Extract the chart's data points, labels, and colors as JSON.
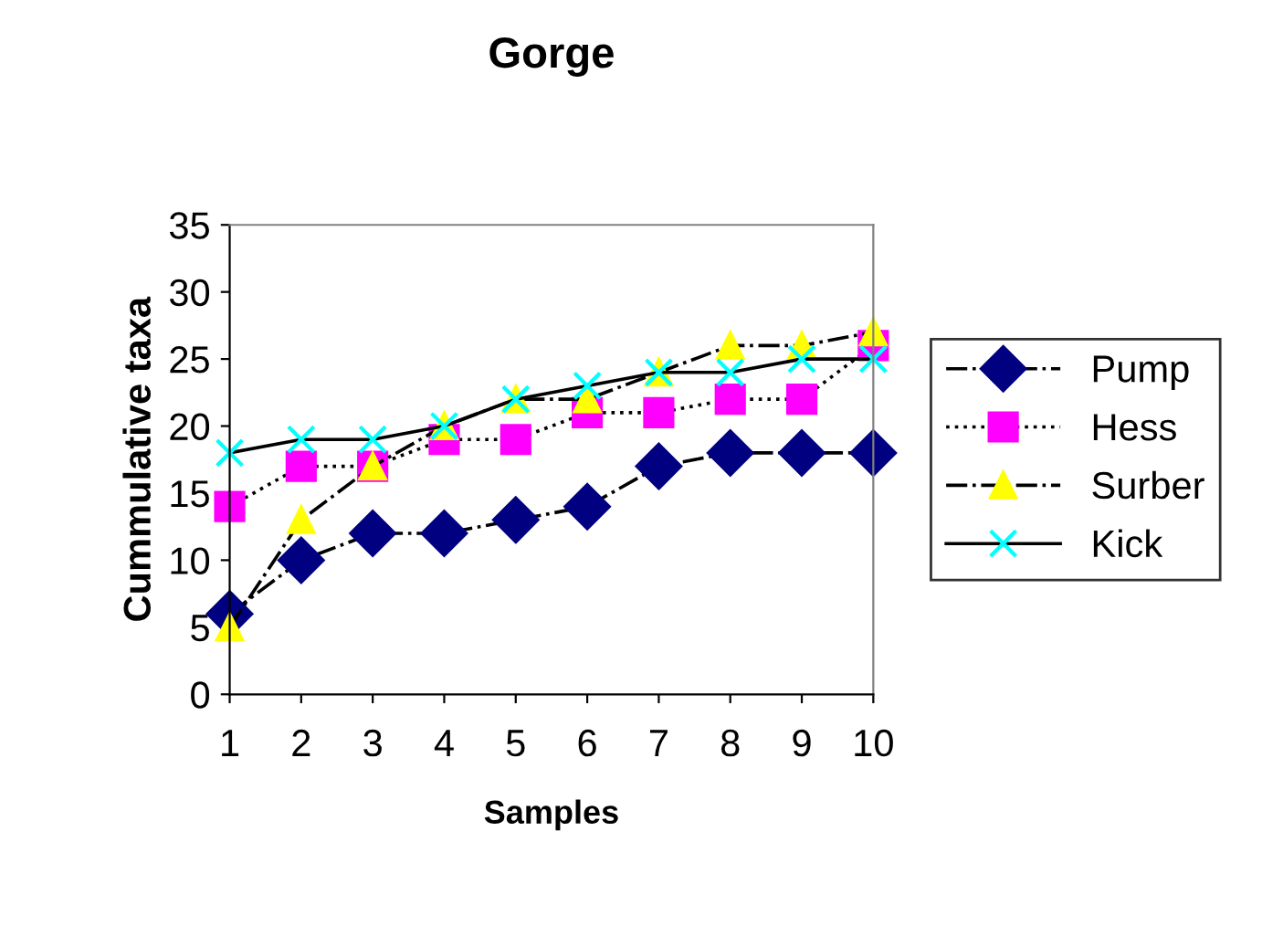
{
  "chart_data": {
    "type": "line",
    "title": "Gorge",
    "xlabel": "Samples",
    "ylabel": "Cummulative taxa",
    "x": [
      1,
      2,
      3,
      4,
      5,
      6,
      7,
      8,
      9,
      10
    ],
    "xlim": [
      1,
      10
    ],
    "xticks": [
      1,
      2,
      3,
      4,
      5,
      6,
      7,
      8,
      9,
      10
    ],
    "ylim": [
      0,
      35
    ],
    "yticks": [
      0,
      5,
      10,
      15,
      20,
      25,
      30,
      35
    ],
    "grid": false,
    "legend": "right",
    "series": [
      {
        "name": "Pump",
        "color": "#000080",
        "marker": "diamond",
        "line_style": "dashdot",
        "values": [
          6,
          10,
          12,
          12,
          13,
          14,
          17,
          18,
          18,
          18
        ]
      },
      {
        "name": "Hess",
        "color": "#ff00ff",
        "marker": "square",
        "line_style": "dotted",
        "values": [
          14,
          17,
          17,
          19,
          19,
          21,
          21,
          22,
          22,
          26
        ]
      },
      {
        "name": "Surber",
        "color": "#ffff00",
        "marker": "triangle",
        "line_style": "dashdot",
        "values": [
          5,
          13,
          17,
          20,
          22,
          22,
          24,
          26,
          26,
          27
        ]
      },
      {
        "name": "Kick",
        "color": "#00ffff",
        "marker": "cross",
        "line_style": "solid",
        "values": [
          18,
          19,
          19,
          20,
          22,
          23,
          24,
          24,
          25,
          25
        ]
      }
    ]
  }
}
